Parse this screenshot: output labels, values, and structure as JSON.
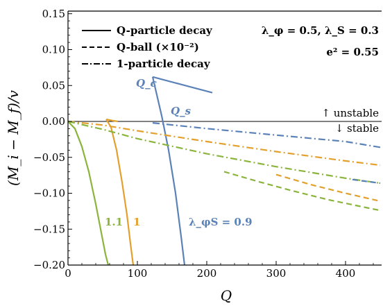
{
  "chart_data": {
    "type": "line",
    "xlabel": "Q",
    "ylabel": "(M_i − M_f)/v",
    "xlim": [
      0,
      450
    ],
    "ylim": [
      -0.2,
      0.15
    ],
    "x_ticks": [
      "0",
      "100",
      "200",
      "300",
      "400"
    ],
    "y_ticks": [
      "0.15",
      "0.10",
      "0.05",
      "0.00",
      "−0.05",
      "−0.10",
      "−0.15",
      "−0.20"
    ],
    "legend": {
      "position": "top-left",
      "entries": [
        {
          "style": "solid",
          "label": "Q-particle decay"
        },
        {
          "style": "dashed",
          "label": "Q-ball (×10⁻²)"
        },
        {
          "style": "dashdot",
          "label": "1-particle decay"
        }
      ]
    },
    "parameters": {
      "line1": "λ_φ = 0.5, λ_S = 0.3",
      "line2": "e² = 0.55"
    },
    "annotations": {
      "unstable": "↑ unstable",
      "stable": "↓ stable",
      "Qc": "Q_c",
      "Qs": "Q_s",
      "lambda_label": "λ_φS = 0.9",
      "green_label": "1.1",
      "orange_label": "1"
    },
    "colors": {
      "blue": "#5b82b8",
      "orange": "#e3a02d",
      "green": "#8ab43c"
    },
    "series": [
      {
        "color": "blue",
        "style": "solid",
        "x": [
          122,
          135,
          145,
          155,
          163,
          168
        ],
        "y": [
          0.062,
          0.008,
          -0.04,
          -0.1,
          -0.16,
          -0.2
        ]
      },
      {
        "color": "blue",
        "style": "solid",
        "x": [
          122,
          165,
          208
        ],
        "y": [
          0.062,
          0.051,
          0.04
        ]
      },
      {
        "color": "orange",
        "style": "solid",
        "x": [
          55,
          62,
          70,
          78,
          85,
          90,
          94
        ],
        "y": [
          0.003,
          -0.008,
          -0.04,
          -0.085,
          -0.13,
          -0.17,
          -0.2
        ]
      },
      {
        "color": "orange",
        "style": "solid",
        "x": [
          55,
          65,
          72
        ],
        "y": [
          0.003,
          0.001,
          0.0
        ]
      },
      {
        "color": "green",
        "style": "solid",
        "x": [
          0,
          10,
          20,
          30,
          40,
          48,
          54,
          58
        ],
        "y": [
          0.0,
          -0.01,
          -0.035,
          -0.07,
          -0.115,
          -0.155,
          -0.185,
          -0.2
        ]
      },
      {
        "color": "blue",
        "style": "dashdot",
        "x": [
          122,
          200,
          300,
          400,
          450
        ],
        "y": [
          -0.002,
          -0.01,
          -0.019,
          -0.028,
          -0.036
        ]
      },
      {
        "color": "orange",
        "style": "dashdot",
        "x": [
          0,
          50,
          100,
          200,
          300,
          400,
          450
        ],
        "y": [
          0.0,
          -0.005,
          -0.013,
          -0.028,
          -0.042,
          -0.055,
          -0.061
        ]
      },
      {
        "color": "green",
        "style": "dashdot",
        "x": [
          0,
          50,
          100,
          200,
          300,
          400,
          450
        ],
        "y": [
          0.0,
          -0.011,
          -0.024,
          -0.045,
          -0.063,
          -0.079,
          -0.086
        ]
      },
      {
        "color": "blue",
        "style": "dashed",
        "x": [
          410,
          450
        ],
        "y": [
          -0.081,
          -0.086
        ]
      },
      {
        "color": "orange",
        "style": "dashed",
        "x": [
          300,
          350,
          400,
          450
        ],
        "y": [
          -0.074,
          -0.088,
          -0.1,
          -0.111
        ]
      },
      {
        "color": "green",
        "style": "dashed",
        "x": [
          225,
          275,
          325,
          375,
          425,
          450
        ],
        "y": [
          -0.07,
          -0.084,
          -0.097,
          -0.109,
          -0.119,
          -0.124
        ]
      }
    ]
  }
}
